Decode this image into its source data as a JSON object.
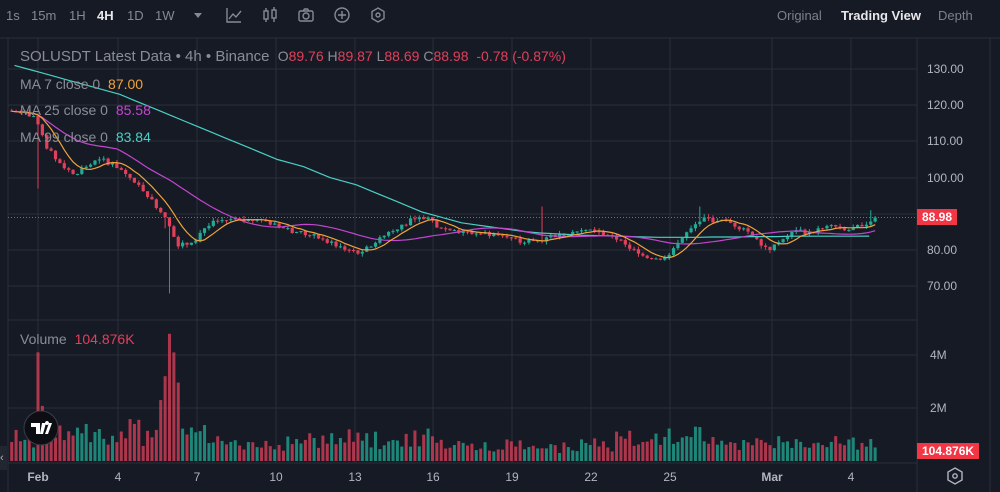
{
  "toolbar": {
    "intervals": [
      "1s",
      "15m",
      "1H",
      "4H",
      "1D",
      "1W"
    ],
    "active_interval": "4H",
    "icons": [
      "chevron-down-icon",
      "indicators-icon",
      "candle-type-icon",
      "camera-icon",
      "plus-circle-icon",
      "settings-hex-icon"
    ],
    "views": [
      "Original",
      "Trading View",
      "Depth"
    ],
    "active_view": "Trading View"
  },
  "legend": {
    "title": "SOLUSDT Latest Data • 4h • Binance",
    "o_label": "O",
    "o": "89.76",
    "h_label": "H",
    "h": "89.87",
    "l_label": "L",
    "l": "88.69",
    "c_label": "C",
    "c": "88.98",
    "change": "-0.78 (-0.87%)",
    "ma7_label": "MA 7 close 0",
    "ma7": "87.00",
    "ma25_label": "MA 25 close 0",
    "ma25": "85.58",
    "ma99_label": "MA 99 close 0",
    "ma99": "83.84"
  },
  "volume_legend": {
    "label": "Volume",
    "value": "104.876K"
  },
  "price_axis": {
    "ticks": [
      "130.00",
      "120.00",
      "110.00",
      "100.00",
      "80.00",
      "70.00"
    ],
    "last_price": "88.98"
  },
  "volume_axis": {
    "ticks": [
      "4M",
      "2M"
    ],
    "last_volume": "104.876K"
  },
  "time_axis": {
    "ticks": [
      "Feb",
      "4",
      "7",
      "10",
      "13",
      "16",
      "19",
      "22",
      "25",
      "Mar",
      "4"
    ]
  },
  "colors": {
    "up": "#22ab94",
    "down": "#e0405a",
    "ma7": "#f0a33a",
    "ma25": "#c246d0",
    "ma99": "#4ad0c4",
    "bg": "#161a25",
    "grid": "#2a2e39"
  },
  "chart_data": {
    "type": "candlestick",
    "symbol": "SOLUSDT",
    "interval": "4h",
    "closes_12h": [
      118,
      117,
      108,
      104,
      101,
      103,
      105,
      104,
      101,
      98,
      94,
      89,
      81,
      82,
      86,
      88,
      88.5,
      88,
      88.5,
      87,
      86,
      85,
      84,
      83,
      81,
      80,
      79.5,
      82,
      85,
      87,
      88.5,
      89,
      86,
      85.5,
      85,
      84.5,
      84.5,
      83.5,
      82,
      82.5,
      83.5,
      84.5,
      85,
      85.5,
      85,
      84,
      81.5,
      79,
      77.5,
      78,
      82,
      86,
      89,
      88,
      87.5,
      86,
      83,
      80,
      83,
      85.5,
      85,
      86,
      86.5,
      85.5,
      86.5,
      88.98
    ],
    "volumes_12h_M": [
      0.9,
      0.8,
      2.0,
      1.0,
      1.0,
      1.1,
      0.9,
      0.8,
      0.8,
      1.2,
      0.9,
      1.8,
      3.4,
      1.5,
      1.2,
      0.7,
      0.6,
      0.6,
      0.7,
      0.6,
      0.6,
      0.7,
      0.8,
      0.7,
      0.9,
      1.0,
      0.8,
      0.8,
      0.7,
      0.8,
      0.9,
      0.9,
      0.8,
      0.7,
      0.6,
      0.6,
      0.6,
      0.7,
      0.6,
      0.6,
      0.6,
      0.5,
      0.5,
      0.6,
      0.7,
      0.6,
      0.8,
      0.9,
      1.0,
      0.9,
      0.9,
      0.8,
      1.1,
      0.8,
      0.6,
      0.6,
      0.8,
      0.9,
      0.7,
      0.6,
      0.6,
      0.6,
      0.7,
      0.6,
      0.7,
      0.8
    ],
    "ma99_12h": [
      131,
      130,
      129,
      128,
      127,
      126,
      125,
      124,
      123,
      121.5,
      120,
      118.5,
      117,
      115.5,
      114,
      112.5,
      111,
      109.5,
      108,
      106.5,
      105,
      104,
      103,
      101.5,
      100,
      99,
      98,
      96.5,
      95,
      93.5,
      92,
      90.5,
      89.5,
      88.5,
      87.5,
      87,
      86.5,
      86,
      85.5,
      85,
      84.7,
      84.5,
      84.3,
      84.1,
      84,
      83.9,
      83.8,
      83.7,
      83.6,
      83.5,
      83.5,
      83.5,
      83.5,
      83.6,
      83.6,
      83.6,
      83.7,
      83.7,
      83.7,
      83.8,
      83.8,
      83.8,
      83.8,
      83.8,
      83.8,
      83.84
    ],
    "wick_overrides": [
      {
        "candle": 6,
        "low": 97
      },
      {
        "candle": 36,
        "low": 68
      },
      {
        "candle": 35,
        "high": 86
      },
      {
        "candle": 121,
        "high": 92
      },
      {
        "candle": 157,
        "high": 92
      },
      {
        "candle": 196,
        "high": 91
      }
    ],
    "volume_spikes": [
      {
        "candle": 6,
        "volume_M": 4.1
      },
      {
        "candle": 36,
        "volume_M": 4.8
      },
      {
        "candle": 35,
        "volume_M": 3.2
      },
      {
        "candle": 34,
        "volume_M": 2.3
      }
    ],
    "price_range": [
      65,
      135
    ],
    "volume_range": [
      0,
      5
    ]
  }
}
